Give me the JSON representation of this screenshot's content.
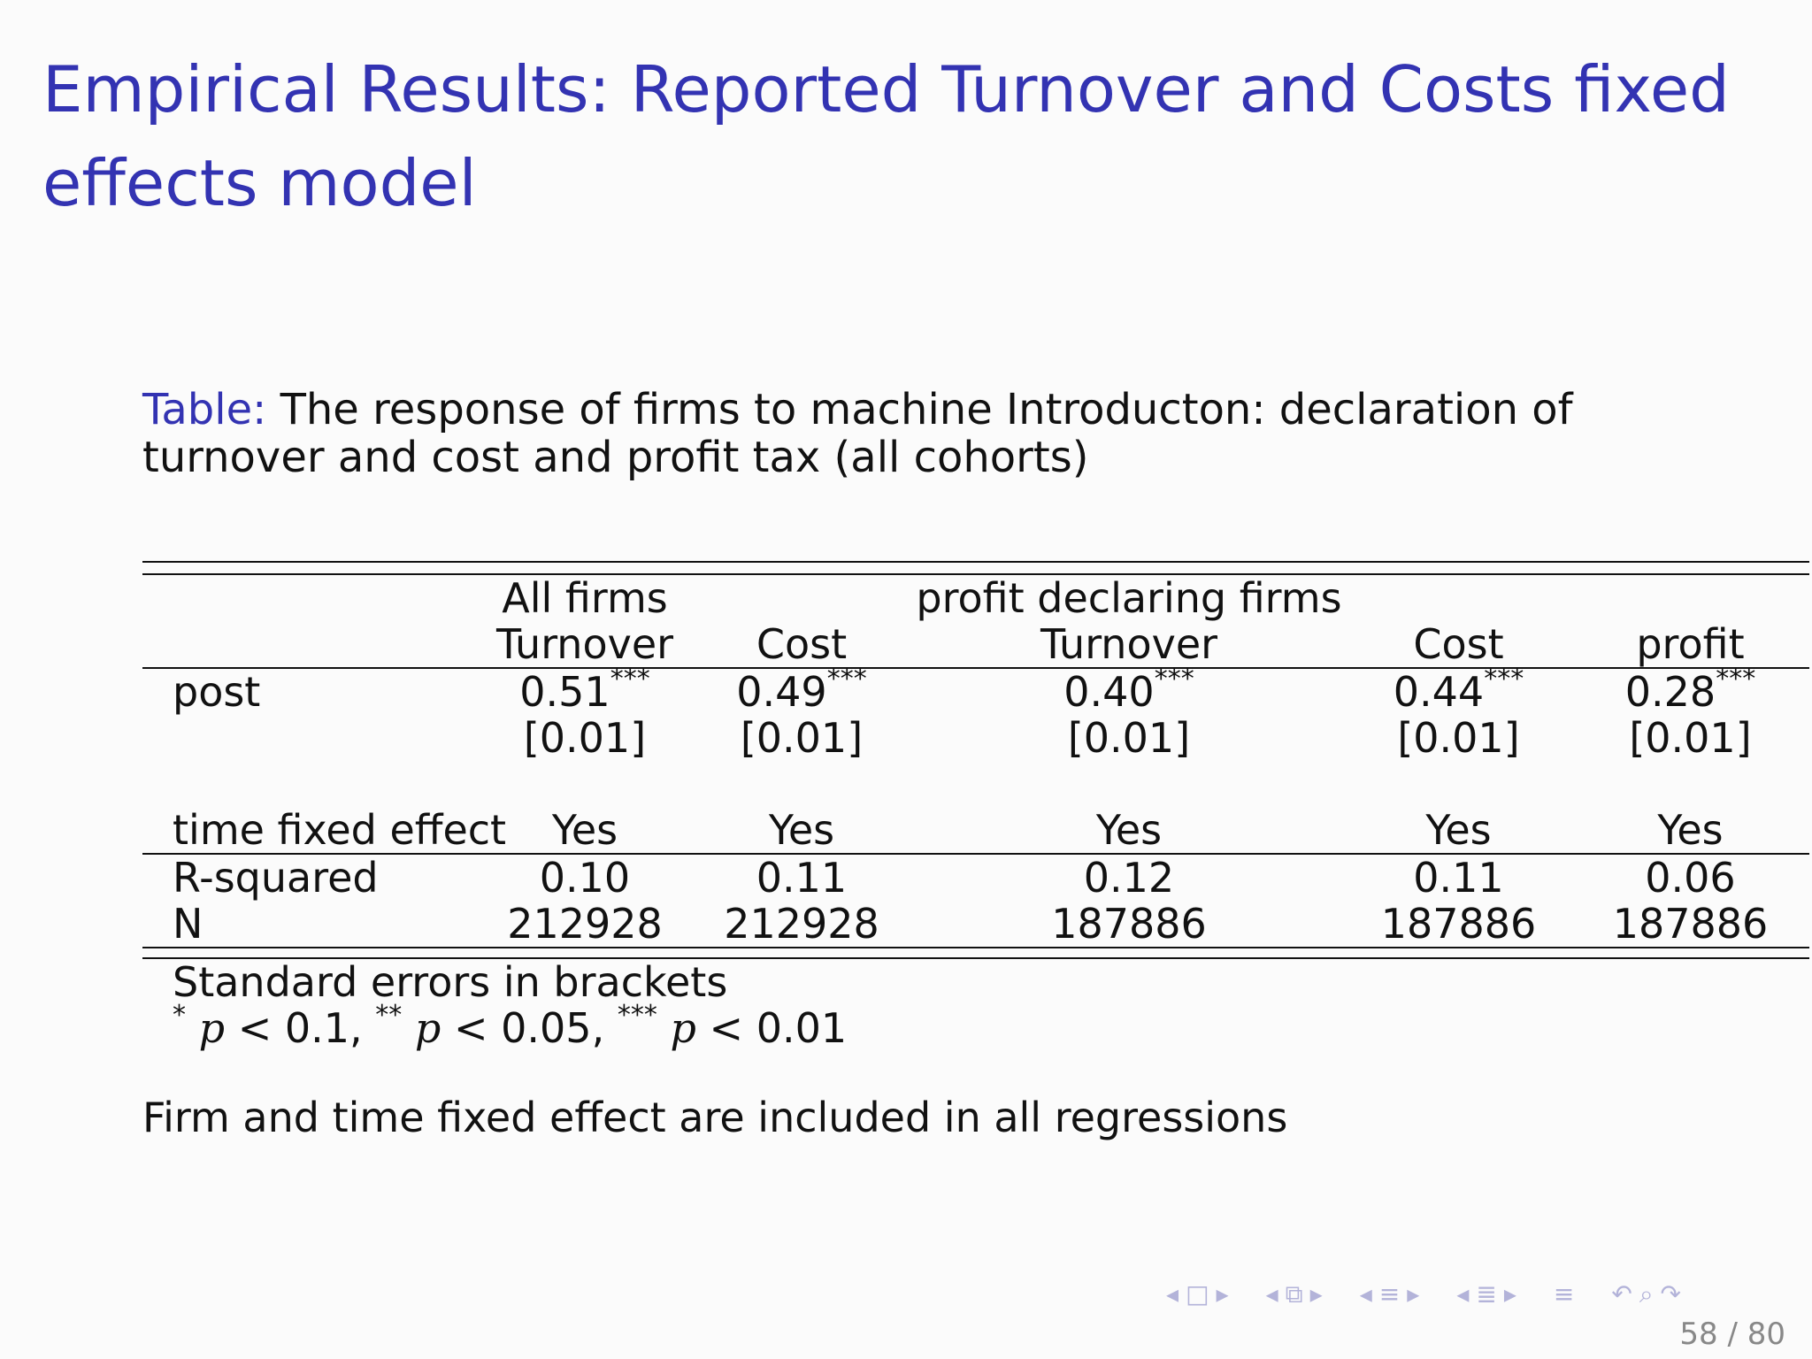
{
  "slide": {
    "title": "Empirical Results: Reported Turnover and Costs fixed effects model",
    "caption_label": "Table:",
    "caption_text": "The response of firms to machine Introducton: declaration of turnover and cost and profit tax (all cohorts)",
    "footnote": "Firm and time fixed effect are included in all regressions",
    "page_number": "58 / 80"
  },
  "table": {
    "group_headers": [
      "All firms",
      "profit declaring firms"
    ],
    "columns": [
      "Turnover",
      "Cost",
      "Turnover",
      "Cost",
      "profit"
    ],
    "post": {
      "label": "post",
      "coefficients": [
        "0.51",
        "0.49",
        "0.40",
        "0.44",
        "0.28"
      ],
      "stars": [
        "***",
        "***",
        "***",
        "***",
        "***"
      ],
      "standard_errors": [
        "[0.01]",
        "[0.01]",
        "[0.01]",
        "[0.01]",
        "[0.01]"
      ]
    },
    "time_fe": {
      "label": "time fixed effect",
      "values": [
        "Yes",
        "Yes",
        "Yes",
        "Yes",
        "Yes"
      ]
    },
    "r_squared": {
      "label": "R-squared",
      "values": [
        "0.10",
        "0.11",
        "0.12",
        "0.11",
        "0.06"
      ]
    },
    "n": {
      "label": "N",
      "values": [
        "212928",
        "212928",
        "187886",
        "187886",
        "187886"
      ]
    },
    "notes": {
      "se_note": "Standard errors in brackets",
      "p1_stars": "*",
      "p1": "< 0.1,",
      "p2_stars": "**",
      "p2": "< 0.05,",
      "p3_stars": "***",
      "p3": "< 0.01",
      "p_symbol": "p"
    }
  },
  "navigation": {
    "icons": [
      "nav-left-arrow",
      "nav-frame",
      "nav-right-arrow",
      "nav-left-arrow",
      "nav-subsection",
      "nav-right-arrow",
      "nav-left-arrow",
      "nav-section",
      "nav-right-arrow",
      "nav-left-arrow",
      "nav-doc",
      "nav-right-arrow",
      "nav-toc",
      "nav-back",
      "nav-search",
      "nav-forward"
    ],
    "color": "#b3b3d9"
  },
  "colors": {
    "title": "#3333b2",
    "text": "#111111",
    "background": "#fbfbfb"
  }
}
